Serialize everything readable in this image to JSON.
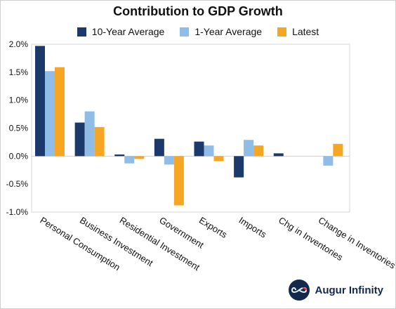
{
  "chart_data": {
    "type": "bar",
    "title": "Contribution to GDP Growth",
    "categories": [
      "Personal Consumption",
      "Business Investment",
      "Residential Investment",
      "Government",
      "Exports",
      "Imports",
      "Chg in Inventories",
      "Change in Inventories"
    ],
    "series": [
      {
        "name": "10-Year Average",
        "color": "#1b3a6b",
        "values": [
          1.97,
          0.6,
          0.03,
          0.31,
          0.26,
          -0.38,
          0.05,
          null
        ]
      },
      {
        "name": "1-Year Average",
        "color": "#8fbde8",
        "values": [
          1.52,
          0.8,
          -0.13,
          -0.15,
          0.19,
          0.29,
          null,
          -0.17
        ]
      },
      {
        "name": "Latest",
        "color": "#f5a623",
        "values": [
          1.59,
          0.52,
          -0.05,
          -0.88,
          -0.09,
          0.19,
          null,
          0.22
        ]
      }
    ],
    "ylim": [
      -1.0,
      2.0
    ],
    "yticks": [
      "2.0%",
      "1.5%",
      "1.0%",
      "0.5%",
      "0.0%",
      "-0.5%",
      "-1.0%"
    ],
    "legend_position": "top-center",
    "grid": false
  },
  "brand": {
    "name": "Augur Infinity",
    "logo_icon": "infinity-icon"
  }
}
